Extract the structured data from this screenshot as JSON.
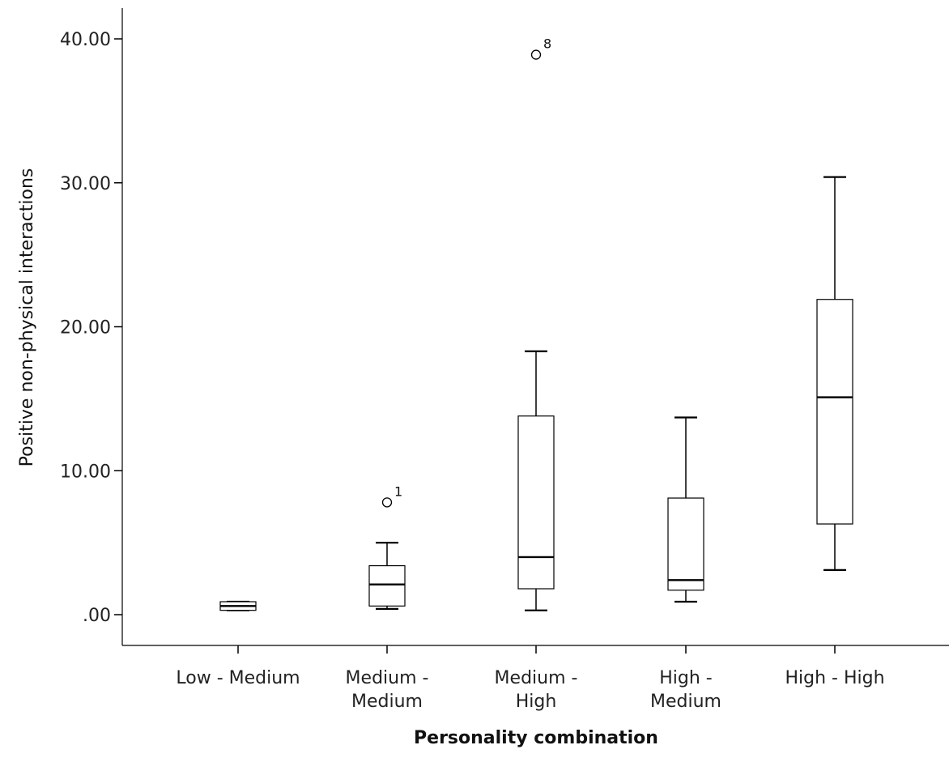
{
  "chart_data": {
    "type": "boxplot",
    "xlabel": "Personality combination",
    "ylabel": "Positive non-physical interactions",
    "ylim": [
      -2.2,
      42.2
    ],
    "yticks": [
      {
        "value": 0,
        "label": ".00"
      },
      {
        "value": 10,
        "label": "10.00"
      },
      {
        "value": 20,
        "label": "20.00"
      },
      {
        "value": 30,
        "label": "30.00"
      },
      {
        "value": 40,
        "label": "40.00"
      }
    ],
    "categories": [
      {
        "label_lines": [
          "Low - Medium"
        ],
        "min": 0.3,
        "q1": 0.3,
        "median": 0.6,
        "q3": 0.9,
        "max": 0.9,
        "outliers": []
      },
      {
        "label_lines": [
          "Medium -",
          "Medium"
        ],
        "min": 0.4,
        "q1": 0.6,
        "median": 2.1,
        "q3": 3.4,
        "max": 5.0,
        "outliers": [
          {
            "value": 7.8,
            "label": "1"
          }
        ]
      },
      {
        "label_lines": [
          "Medium -",
          "High"
        ],
        "min": 0.3,
        "q1": 1.8,
        "median": 4.0,
        "q3": 13.8,
        "max": 18.3,
        "outliers": [
          {
            "value": 38.9,
            "label": "8"
          }
        ]
      },
      {
        "label_lines": [
          "High -",
          "Medium"
        ],
        "min": 0.9,
        "q1": 1.7,
        "median": 2.4,
        "q3": 8.1,
        "max": 13.7,
        "outliers": []
      },
      {
        "label_lines": [
          "High - High"
        ],
        "min": 3.1,
        "q1": 6.3,
        "median": 15.1,
        "q3": 21.9,
        "max": 30.4,
        "outliers": []
      }
    ]
  }
}
